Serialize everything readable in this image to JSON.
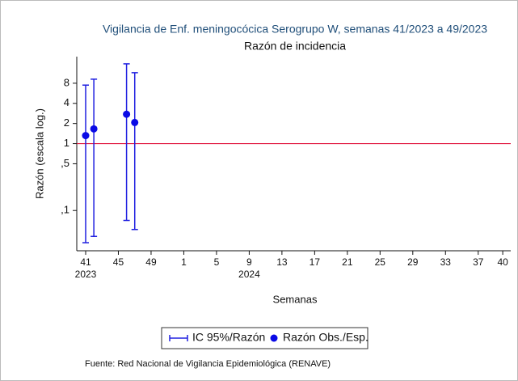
{
  "chart_data": {
    "type": "errorbar",
    "title": "Vigilancia de Enf. meningocócica Serogrupo W, semanas 41/2023 a 49/2023",
    "subtitle": "Razón de incidencia",
    "xlabel": "Semanas",
    "ylabel": "Razón (escala log.)",
    "source": "Fuente: Red Nacional de Vigilancia Epidemiológica (RENAVE)",
    "log_y": true,
    "categories": [
      "41",
      null,
      null,
      null,
      "45",
      null,
      null,
      null,
      "49",
      null,
      null,
      null,
      "1",
      null,
      null,
      null,
      "5",
      null,
      null,
      null,
      "9",
      null,
      null,
      null,
      "13",
      null,
      null,
      null,
      "17",
      null,
      null,
      null,
      "21",
      null,
      null,
      null,
      "25",
      null,
      null,
      null,
      "29",
      null,
      null,
      null,
      "33",
      null,
      null,
      null,
      "37",
      null,
      null,
      "40"
    ],
    "year_labels": [
      {
        "label": "2023",
        "category": "41"
      },
      {
        "label": "2024",
        "category": "9"
      }
    ],
    "series": [
      {
        "name": "IC 95%/Razón",
        "color": "#2020e0",
        "lower": [
          0.033,
          0.041,
          null,
          null,
          null,
          0.071,
          0.052,
          null,
          null,
          null,
          null,
          null,
          null,
          null,
          null,
          null,
          null,
          null,
          null,
          null,
          null,
          null,
          null,
          null,
          null,
          null,
          null,
          null,
          null,
          null,
          null,
          null,
          null,
          null,
          null,
          null,
          null,
          null,
          null,
          null,
          null,
          null,
          null,
          null,
          null,
          null,
          null,
          null,
          null,
          null,
          null,
          null
        ],
        "upper": [
          7.5,
          9.2,
          null,
          null,
          null,
          15.6,
          11.5,
          null,
          null,
          null,
          null,
          null,
          null,
          null,
          null,
          null,
          null,
          null,
          null,
          null,
          null,
          null,
          null,
          null,
          null,
          null,
          null,
          null,
          null,
          null,
          null,
          null,
          null,
          null,
          null,
          null,
          null,
          null,
          null,
          null,
          null,
          null,
          null,
          null,
          null,
          null,
          null,
          null,
          null,
          null,
          null,
          null
        ]
      },
      {
        "name": "Razón Obs./Esp.",
        "color": "#0a0ae6",
        "values": [
          1.32,
          1.66,
          null,
          null,
          null,
          2.75,
          2.07,
          null,
          null,
          null,
          null,
          null,
          null,
          null,
          null,
          null,
          null,
          null,
          null,
          null,
          null,
          null,
          null,
          null,
          null,
          null,
          null,
          null,
          null,
          null,
          null,
          null,
          null,
          null,
          null,
          null,
          null,
          null,
          null,
          null,
          null,
          null,
          null,
          null,
          null,
          null,
          null,
          null,
          null,
          null,
          null,
          null
        ]
      }
    ],
    "reference_line": {
      "value": 1,
      "color": "#e0103a"
    },
    "ylim": [
      0.025,
      20
    ],
    "yticks": [
      8,
      4,
      2,
      1,
      {
        "value": 0.5,
        "label": ",5"
      },
      {
        "value": 0.1,
        "label": ",1"
      }
    ],
    "legend": "bottom"
  }
}
